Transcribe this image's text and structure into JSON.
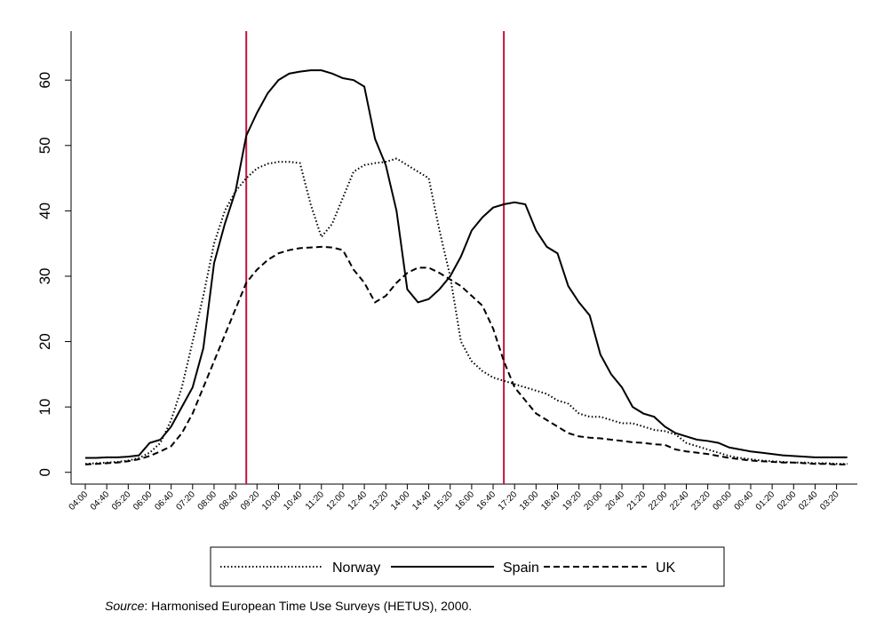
{
  "chart_data": {
    "type": "line",
    "categories": [
      "04:00",
      null,
      "04:40",
      null,
      "05:20",
      null,
      "06:00",
      null,
      "06:40",
      null,
      "07:20",
      null,
      "08:00",
      null,
      "08:40",
      null,
      "09:20",
      null,
      "10:00",
      null,
      "10:40",
      null,
      "11:20",
      null,
      "12:00",
      null,
      "12:40",
      null,
      "13:20",
      null,
      "14:00",
      null,
      "14:40",
      null,
      "15:20",
      null,
      "16:00",
      null,
      "16:40",
      null,
      "17:20",
      null,
      "18:00",
      null,
      "18:40",
      null,
      "19:20",
      null,
      "20:00",
      null,
      "20:40",
      null,
      "21:20",
      null,
      "22:00",
      null,
      "22:40",
      null,
      "23:20",
      null,
      "00:00",
      null,
      "00:40",
      null,
      "01:20",
      null,
      "02:00",
      null,
      "02:40",
      null,
      "03:20",
      null
    ],
    "series": [
      {
        "name": "Norway",
        "color": "#000000",
        "linestyle": "dotted",
        "values": [
          1.3,
          1.4,
          1.5,
          1.6,
          1.8,
          2.2,
          3,
          4.5,
          8,
          13,
          20,
          27,
          35,
          40,
          43,
          45,
          46.5,
          47.2,
          47.5,
          47.5,
          47.3,
          41,
          36,
          38,
          42,
          46,
          47,
          47.3,
          47.5,
          48,
          47,
          46,
          45,
          37,
          30,
          20,
          17,
          15.5,
          14.5,
          14,
          13.5,
          13,
          12.5,
          12,
          11,
          10.5,
          9,
          8.5,
          8.5,
          8,
          7.5,
          7.5,
          7,
          6.5,
          6.3,
          5.8,
          4.5,
          4,
          3.5,
          3,
          2.5,
          2.2,
          2,
          1.8,
          1.7,
          1.6,
          1.5,
          1.5,
          1.4,
          1.4,
          1.3,
          1.3
        ]
      },
      {
        "name": "Spain",
        "color": "#000000",
        "linestyle": "solid",
        "values": [
          2.2,
          2.2,
          2.3,
          2.3,
          2.4,
          2.6,
          4.5,
          5,
          7,
          10,
          13,
          19,
          32,
          38,
          43,
          51.5,
          55,
          58,
          60,
          61,
          61.3,
          61.5,
          61.5,
          61,
          60.3,
          60,
          59,
          51,
          47,
          40,
          28,
          26,
          26.5,
          28,
          30,
          33,
          37,
          39,
          40.5,
          41,
          41.3,
          41,
          37,
          34.5,
          33.5,
          28.5,
          26,
          24,
          18,
          15,
          13,
          10,
          9,
          8.5,
          7,
          6,
          5.5,
          5,
          4.8,
          4.5,
          3.8,
          3.5,
          3.2,
          3,
          2.8,
          2.6,
          2.5,
          2.4,
          2.3,
          2.3,
          2.3,
          2.3
        ]
      },
      {
        "name": "UK",
        "color": "#000000",
        "linestyle": "dashed",
        "values": [
          1.2,
          1.3,
          1.4,
          1.5,
          1.7,
          2,
          2.5,
          3.2,
          4,
          6,
          9,
          13,
          17,
          21,
          25,
          29,
          31,
          32.5,
          33.5,
          34,
          34.3,
          34.4,
          34.5,
          34.4,
          34,
          31,
          29,
          26,
          27,
          29,
          30.5,
          31.3,
          31.3,
          30.5,
          29.5,
          28.5,
          27,
          25.5,
          22,
          17,
          13,
          11,
          9,
          8,
          7,
          6,
          5.5,
          5.3,
          5.2,
          5,
          4.8,
          4.6,
          4.5,
          4.3,
          4.2,
          3.5,
          3.2,
          3,
          2.8,
          2.5,
          2.2,
          2,
          1.8,
          1.7,
          1.6,
          1.5,
          1.5,
          1.4,
          1.3,
          1.3,
          1.2,
          1.2
        ]
      }
    ],
    "vlines": [
      15,
      39
    ],
    "vline_color": "#c0143c",
    "ylim": [
      -1.8,
      67.5
    ],
    "yticks": [
      0,
      10,
      20,
      30,
      40,
      50,
      60
    ],
    "grid": false,
    "legend": "bottom",
    "source_label": "Source",
    "source_text": ": Harmonised European Time Use Surveys (HETUS), 2000."
  }
}
